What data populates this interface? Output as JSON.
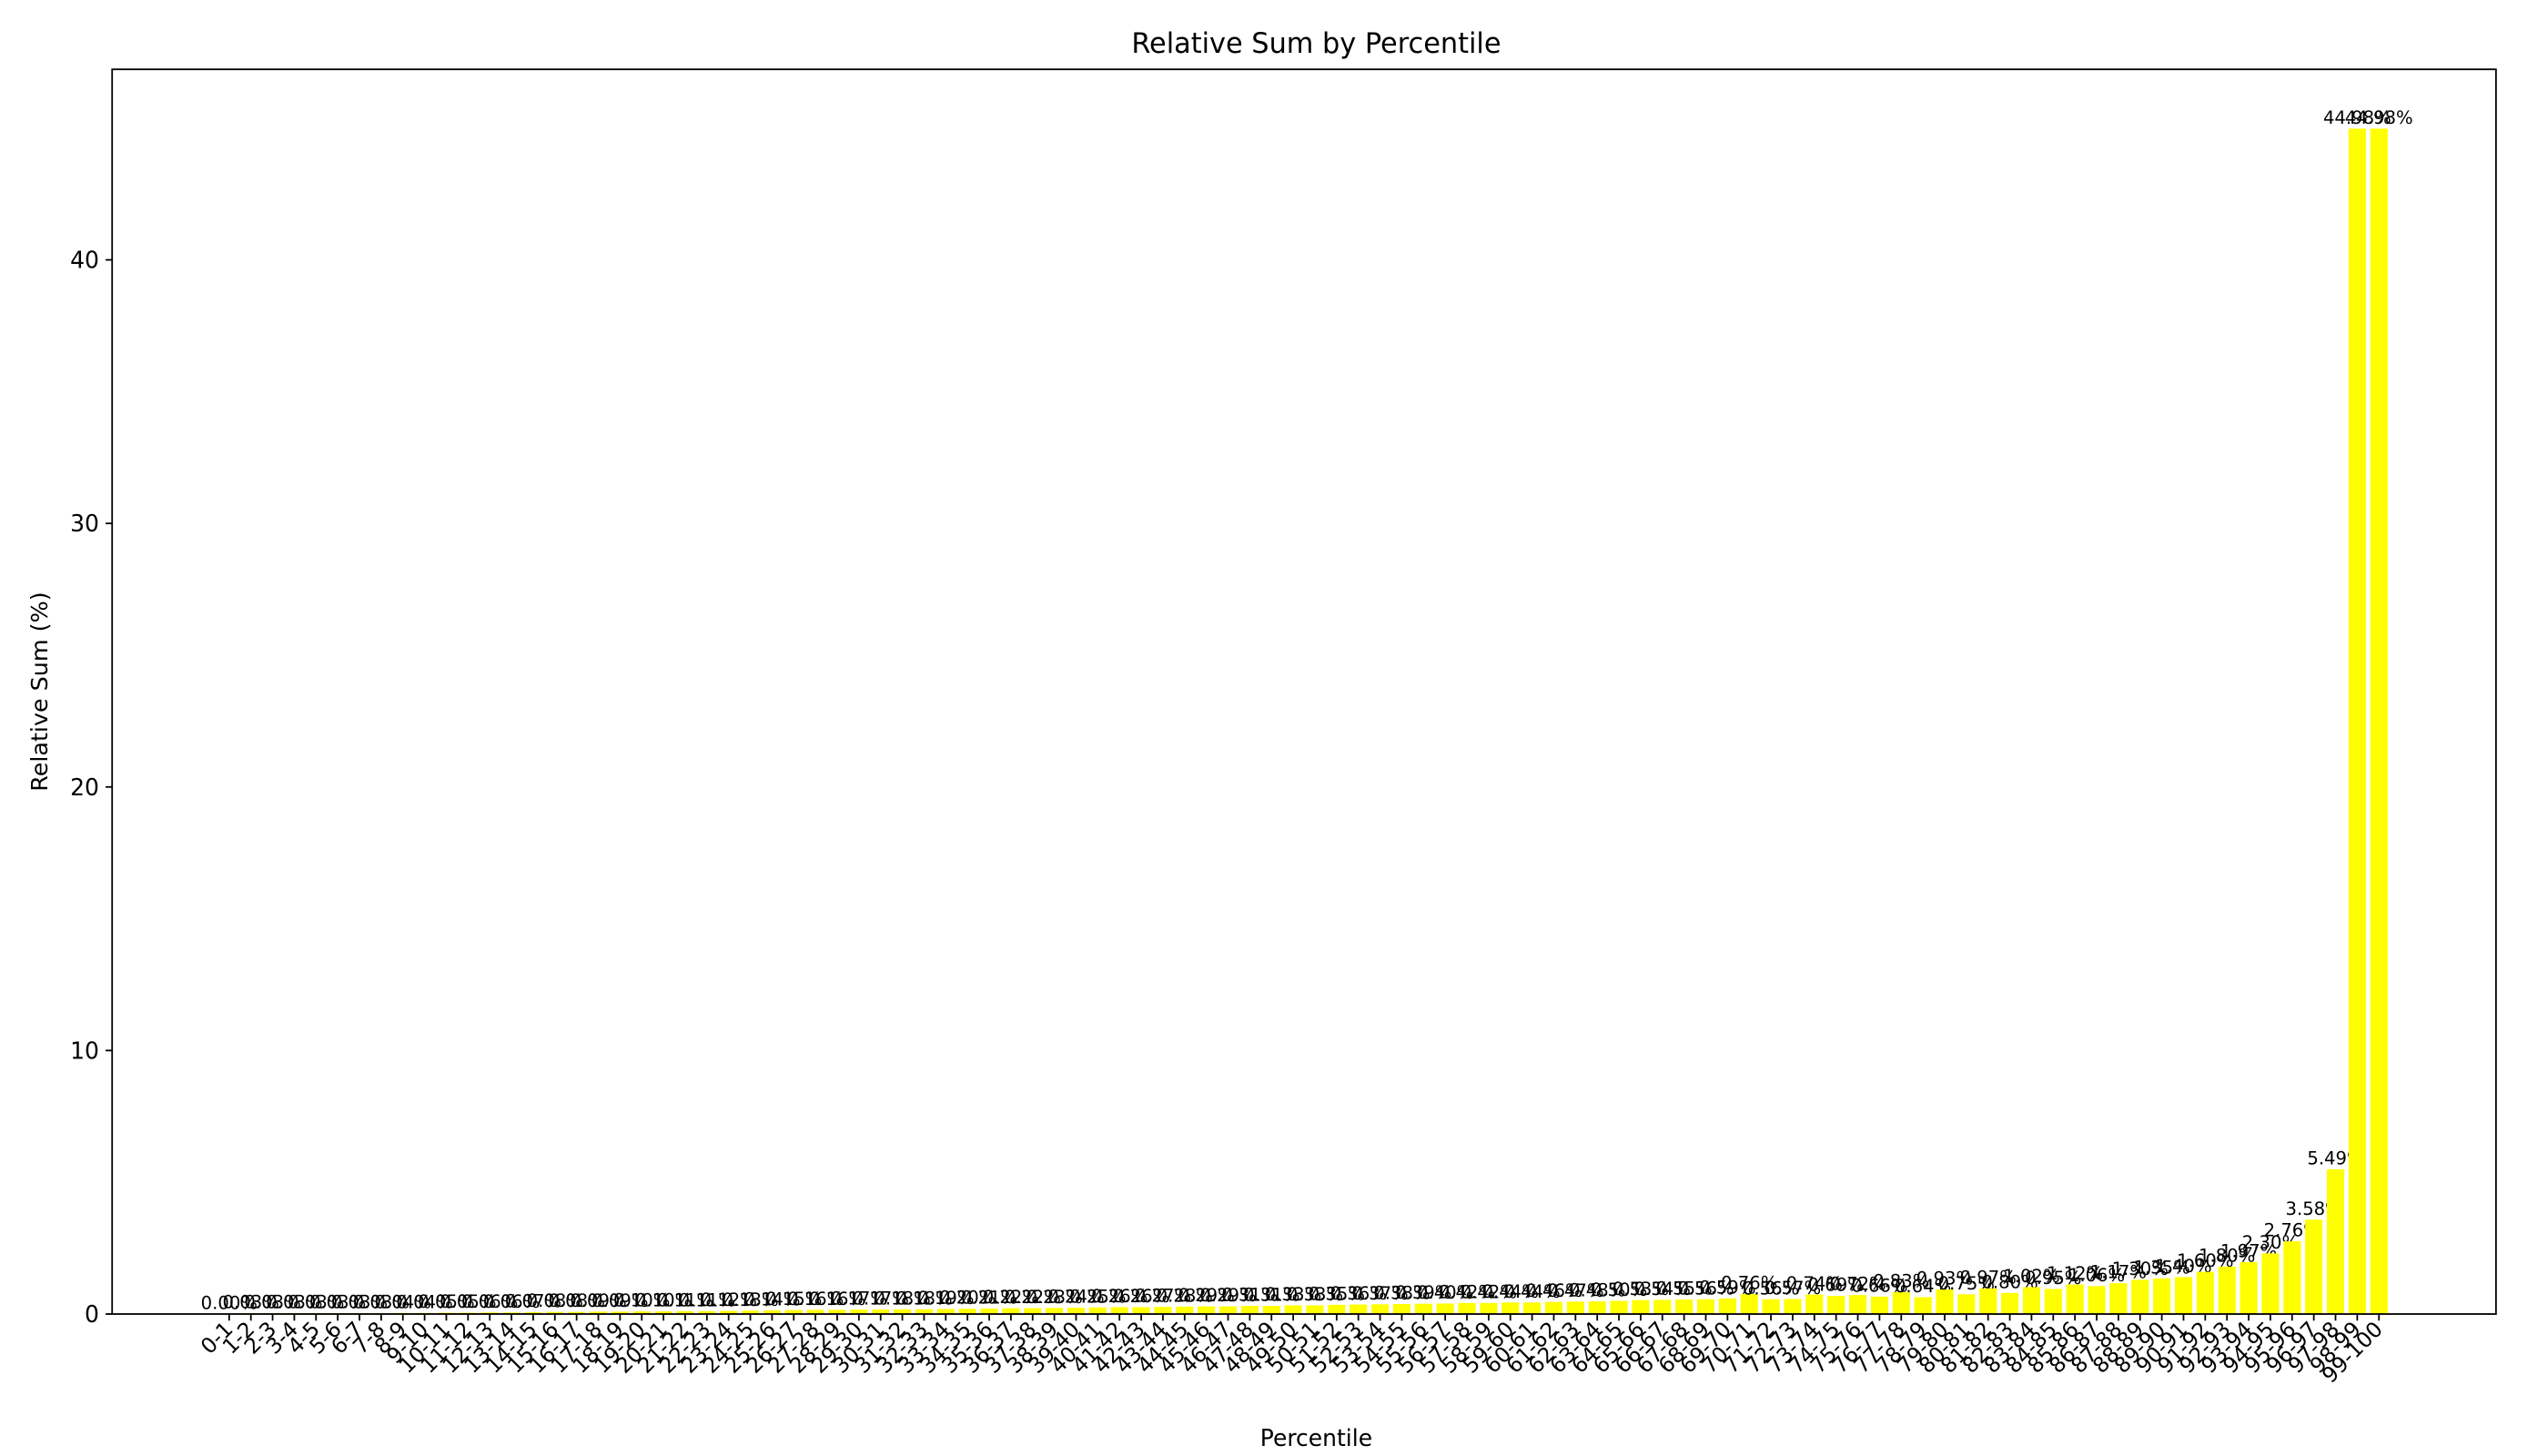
{
  "chart_data": {
    "type": "bar",
    "title": "Relative Sum by Percentile",
    "xlabel": "Percentile",
    "ylabel": "Relative Sum (%)",
    "color": "#ffff00",
    "categories": [
      "0-1",
      "1-2",
      "2-3",
      "3-4",
      "4-5",
      "5-6",
      "6-7",
      "7-8",
      "8-9",
      "9-10",
      "10-11",
      "11-12",
      "12-13",
      "13-14",
      "14-15",
      "15-16",
      "16-17",
      "17-18",
      "18-19",
      "19-20",
      "20-21",
      "21-22",
      "22-23",
      "23-24",
      "24-25",
      "25-26",
      "26-27",
      "27-28",
      "28-29",
      "29-30",
      "30-31",
      "31-32",
      "32-33",
      "33-34",
      "34-35",
      "35-36",
      "36-37",
      "37-38",
      "38-39",
      "39-40",
      "40-41",
      "41-42",
      "42-43",
      "43-44",
      "44-45",
      "45-46",
      "46-47",
      "47-48",
      "48-49",
      "49-50",
      "50-51",
      "51-52",
      "52-53",
      "53-54",
      "54-55",
      "55-56",
      "56-57",
      "57-58",
      "58-59",
      "59-60",
      "60-61",
      "61-62",
      "62-63",
      "63-64",
      "64-65",
      "65-66",
      "66-67",
      "67-68",
      "68-69",
      "69-70",
      "70-71",
      "71-72",
      "72-73",
      "73-74",
      "74-75",
      "75-76",
      "76-77",
      "77-78",
      "78-79",
      "79-80",
      "80-81",
      "81-82",
      "82-83",
      "83-84",
      "84-85",
      "85-86",
      "86-87",
      "87-88",
      "88-89",
      "89-90",
      "90-91",
      "91-92",
      "92-93",
      "93-94",
      "94-95",
      "95-96",
      "96-97",
      "97-98",
      "98-99",
      "99-100"
    ],
    "values": [
      0.0,
      0.03,
      0.03,
      0.03,
      0.03,
      0.03,
      0.03,
      0.03,
      0.04,
      0.04,
      0.05,
      0.05,
      0.06,
      0.06,
      0.07,
      0.08,
      0.08,
      0.09,
      0.09,
      0.1,
      0.1,
      0.11,
      0.11,
      0.12,
      0.13,
      0.14,
      0.15,
      0.16,
      0.16,
      0.17,
      0.17,
      0.18,
      0.18,
      0.19,
      0.2,
      0.21,
      0.22,
      0.22,
      0.23,
      0.24,
      0.25,
      0.26,
      0.26,
      0.27,
      0.28,
      0.29,
      0.29,
      0.31,
      0.31,
      0.33,
      0.33,
      0.35,
      0.36,
      0.37,
      0.38,
      0.39,
      0.4,
      0.42,
      0.42,
      0.44,
      0.44,
      0.46,
      0.47,
      0.48,
      0.5,
      0.53,
      0.54,
      0.55,
      0.56,
      0.59,
      0.76,
      0.56,
      0.57,
      0.74,
      0.69,
      0.72,
      0.66,
      0.83,
      0.64,
      0.93,
      0.75,
      0.97,
      0.8,
      1.02,
      0.95,
      1.12,
      1.06,
      1.17,
      1.3,
      1.35,
      1.4,
      1.6,
      1.8,
      1.97,
      2.3,
      2.76,
      3.58,
      5.49,
      44.98,
      44.98
    ],
    "value_labels": [
      "0.00%",
      "0.03%",
      "0.03%",
      "0.03%",
      "0.03%",
      "0.03%",
      "0.03%",
      "0.03%",
      "0.04%",
      "0.04%",
      "0.05%",
      "0.05%",
      "0.06%",
      "0.06%",
      "0.07%",
      "0.08%",
      "0.08%",
      "0.09%",
      "0.09%",
      "0.10%",
      "0.10%",
      "0.11%",
      "0.11%",
      "0.12%",
      "0.13%",
      "0.14%",
      "0.15%",
      "0.16%",
      "0.16%",
      "0.17%",
      "0.17%",
      "0.18%",
      "0.18%",
      "0.19%",
      "0.20%",
      "0.21%",
      "0.22%",
      "0.22%",
      "0.23%",
      "0.24%",
      "0.25%",
      "0.26%",
      "0.26%",
      "0.27%",
      "0.28%",
      "0.29%",
      "0.29%",
      "0.31%",
      "0.31%",
      "0.33%",
      "0.33%",
      "0.35%",
      "0.36%",
      "0.37%",
      "0.38%",
      "0.39%",
      "0.40%",
      "0.42%",
      "0.42%",
      "0.44%",
      "0.44%",
      "0.46%",
      "0.47%",
      "0.48%",
      "0.50%",
      "0.53%",
      "0.54%",
      "0.55%",
      "0.56%",
      "0.59%",
      "0.76%",
      "0.56%",
      "0.57%",
      "0.74%",
      "0.69%",
      "0.72%",
      "0.66%",
      "0.83%",
      "0.64%",
      "0.93%",
      "0.75%",
      "0.97%",
      "0.80%",
      "1.02%",
      "0.95%",
      "1.12%",
      "1.06%",
      "1.17%",
      "1.30%",
      "1.35%",
      "1.40%",
      "1.60%",
      "1.80%",
      "1.97%",
      "2.30%",
      "2.76%",
      "3.58%",
      "5.49%",
      "44.98%",
      "44.98%"
    ],
    "ylim": [
      0,
      47.23
    ],
    "yticks": [
      0,
      10,
      20,
      30,
      40
    ]
  }
}
